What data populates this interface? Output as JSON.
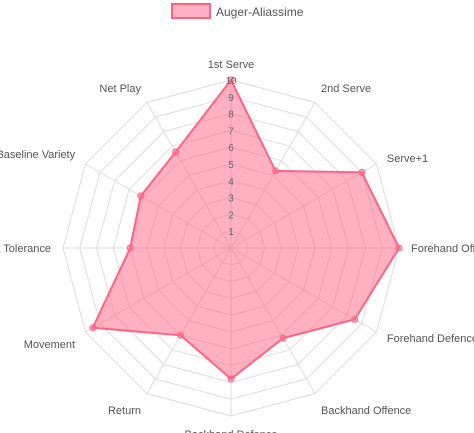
{
  "chart_data": {
    "type": "radar",
    "categories": [
      "1st Serve",
      "2nd Serve",
      "Serve+1",
      "Forehand Offence",
      "Forehand Defence",
      "Backhand Offence",
      "Backhand Defence",
      "Return",
      "Movement",
      "Shot Tolerance",
      "Baseline Variety",
      "Net Play"
    ],
    "series": [
      {
        "name": "Auger-Aliassime",
        "values": [
          10,
          5.3,
          9,
          10,
          8.5,
          6.2,
          7.8,
          6,
          9.5,
          6,
          6.2,
          6.6
        ]
      }
    ],
    "rlim": [
      0,
      10
    ],
    "ticks": [
      "1",
      "2",
      "3",
      "4",
      "5",
      "6",
      "7",
      "8",
      "9",
      "10"
    ],
    "grid": true,
    "legend_position": "top",
    "colors": {
      "fill": "rgba(255, 99, 132, 0.5)",
      "stroke": "#ff6384",
      "grid": "#dddddd",
      "label": "#555555"
    }
  }
}
